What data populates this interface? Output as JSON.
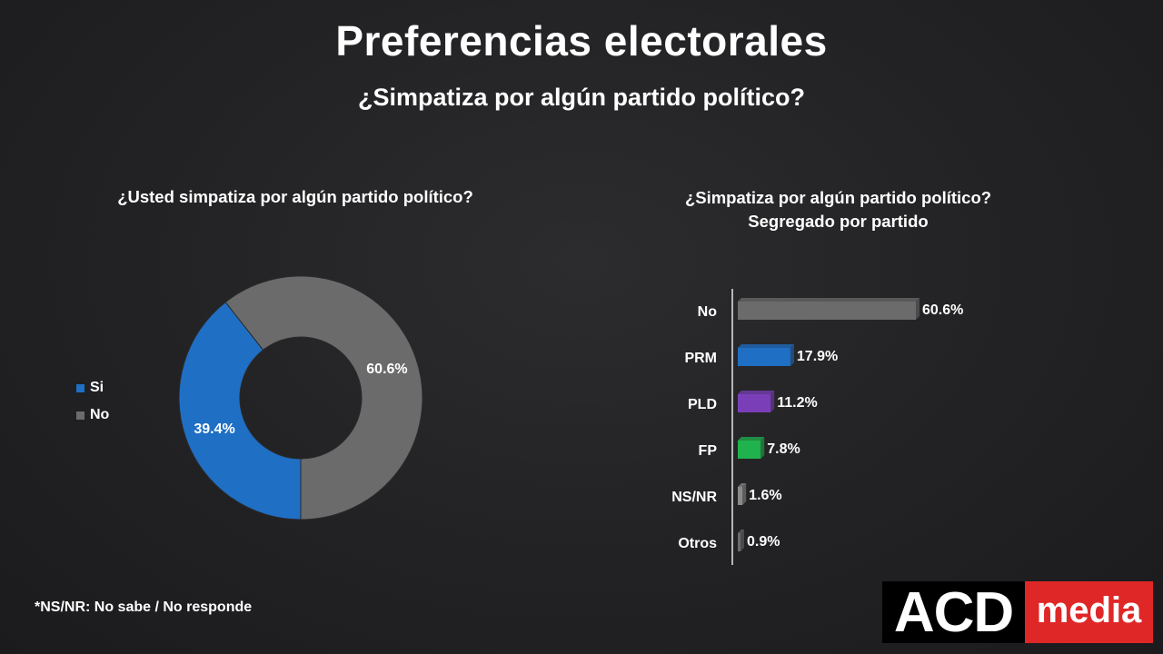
{
  "header": {
    "title": "Preferencias electorales",
    "subtitle": "¿Simpatiza por algún partido político?"
  },
  "footnote": "*NS/NR: No sabe / No responde",
  "logo": {
    "left_text": "ACD",
    "right_text": "media",
    "left_color": "#000000",
    "right_color": "#e02727"
  },
  "chart_data": [
    {
      "type": "pie",
      "variant": "donut",
      "title": "¿Usted simpatiza por algún partido político?",
      "categories": [
        "Si",
        "No"
      ],
      "values": [
        39.4,
        60.6
      ],
      "labels": [
        "39.4%",
        "60.6%"
      ],
      "colors": [
        "#1f6fc5",
        "#6b6b6b"
      ],
      "legend": "left"
    },
    {
      "type": "bar",
      "orientation": "horizontal",
      "title": "¿Simpatiza por algún partido político?",
      "subtitle": "Segregado por partido",
      "categories": [
        "No",
        "PRM",
        "PLD",
        "FP",
        "NS/NR",
        "Otros"
      ],
      "values": [
        60.6,
        17.9,
        11.2,
        7.8,
        1.6,
        0.9
      ],
      "labels": [
        "60.6%",
        "17.9%",
        "11.2%",
        "7.8%",
        "1.6%",
        "0.9%"
      ],
      "colors": [
        "#6b6b6b",
        "#1f6fc5",
        "#7a3fb8",
        "#1fb24d",
        "#8a8a8a",
        "#6b6b6b"
      ],
      "xlim": [
        0,
        60.6
      ]
    }
  ]
}
